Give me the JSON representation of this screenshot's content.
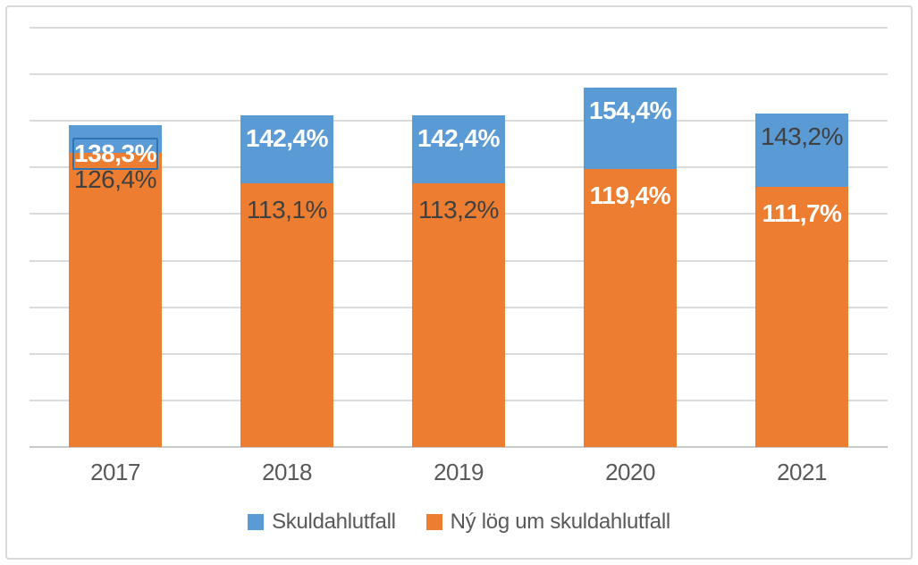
{
  "window": {
    "background": "#ffffff",
    "border_color": "#d9d9d9"
  },
  "colors": {
    "series_blue": "#5b9bd5",
    "series_orange": "#ed7d31",
    "label_light": "#ffffff",
    "label_dark": "#404040",
    "axis_text": "#595959",
    "gridline": "#dbdbdb",
    "axis_line": "#c9c9c9",
    "selection_border": "#2e75b6"
  },
  "chart_data": {
    "type": "bar",
    "stacked": true,
    "title": "",
    "xlabel": "",
    "ylabel": "",
    "categories": [
      "2017",
      "2018",
      "2019",
      "2020",
      "2021"
    ],
    "series": [
      {
        "name": "Skuldahlutfall",
        "color": "#5b9bd5",
        "role": "total",
        "values": [
          138.3,
          142.4,
          142.4,
          154.4,
          143.2
        ],
        "data_labels": [
          {
            "text": "138,3%",
            "style": "light",
            "selected": true
          },
          {
            "text": "142,4%",
            "style": "light",
            "selected": false
          },
          {
            "text": "142,4%",
            "style": "light",
            "selected": false
          },
          {
            "text": "154,4%",
            "style": "light",
            "selected": false
          },
          {
            "text": "143,2%",
            "style": "dark",
            "selected": false
          }
        ]
      },
      {
        "name": "Ný lög um skuldahlutfall",
        "color": "#ed7d31",
        "role": "base",
        "values": [
          126.4,
          113.1,
          113.2,
          119.4,
          111.7
        ],
        "data_labels": [
          {
            "text": "126,4%",
            "style": "dark",
            "selected": false
          },
          {
            "text": "113,1%",
            "style": "dark",
            "selected": false
          },
          {
            "text": "113,2%",
            "style": "dark",
            "selected": false
          },
          {
            "text": "119,4%",
            "style": "light",
            "selected": false
          },
          {
            "text": "111,7%",
            "style": "light",
            "selected": false
          }
        ]
      }
    ],
    "axis": {
      "ymin": 0,
      "ymax": 180,
      "grid_step": 20,
      "unit": "%"
    },
    "grid": true,
    "y_tick_labels_visible": false,
    "legend": {
      "position": "bottom",
      "entries": [
        "Skuldahlutfall",
        "Ný lög um skuldahlutfall"
      ]
    }
  }
}
